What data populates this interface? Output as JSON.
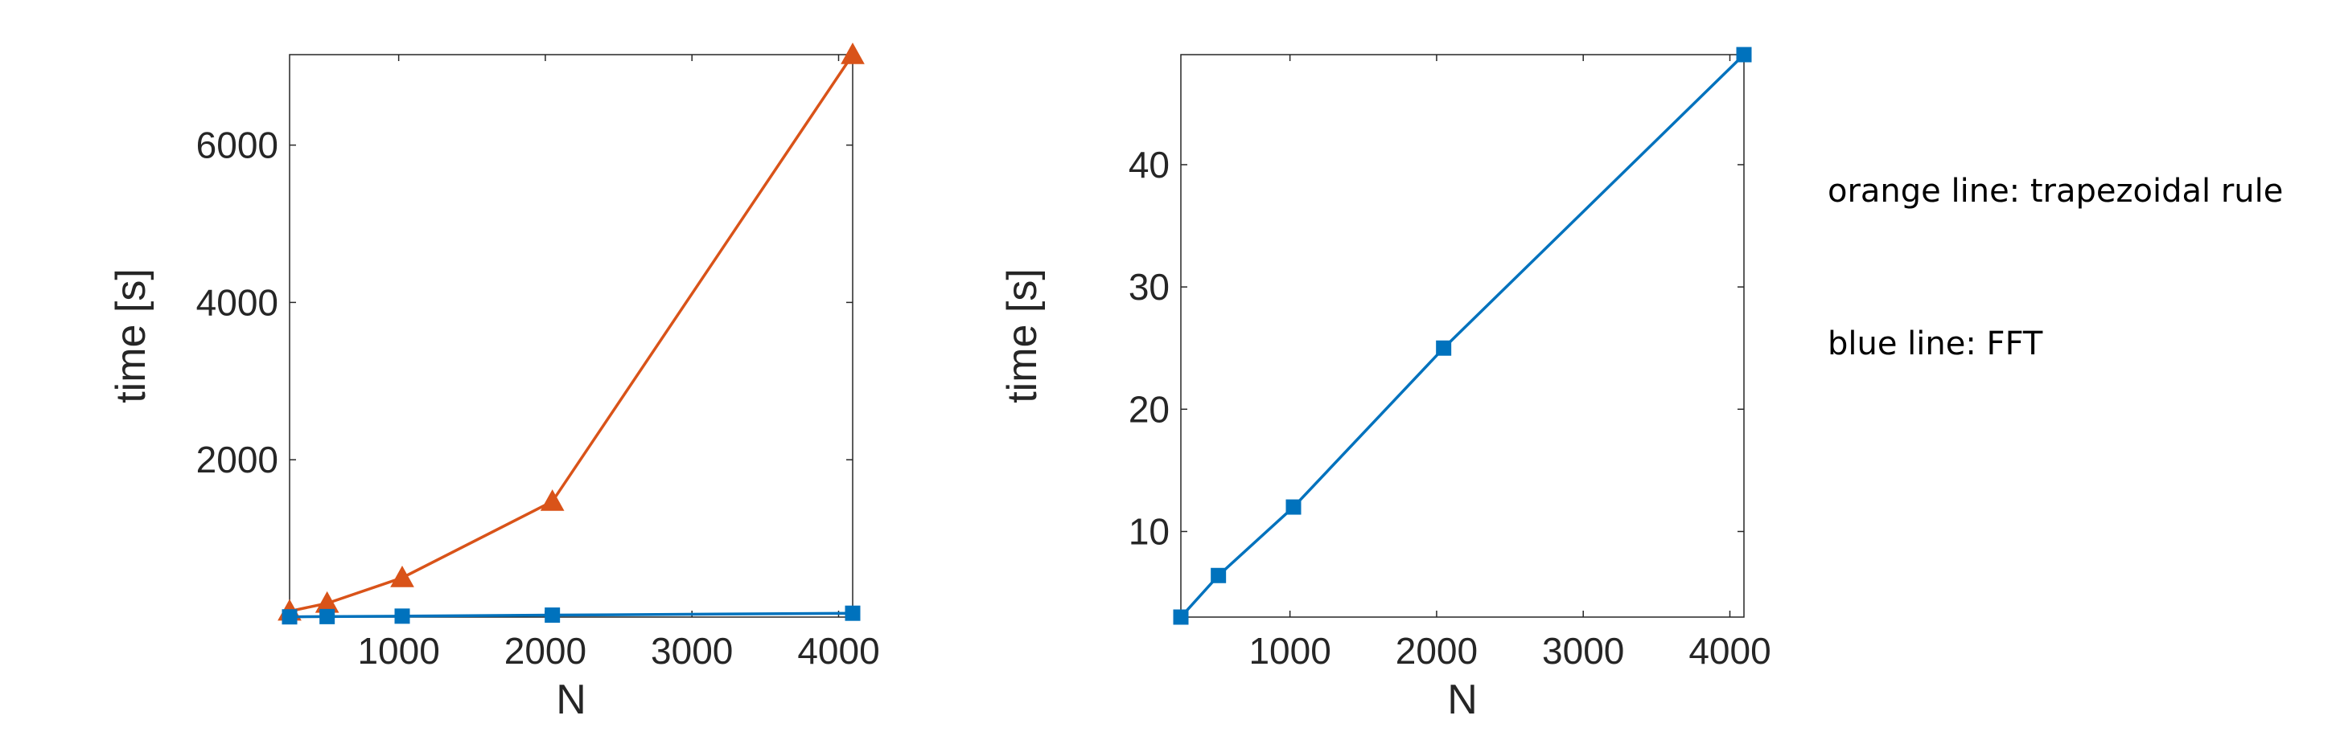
{
  "chart_data": [
    {
      "type": "line",
      "title": "",
      "xlabel": "N",
      "ylabel": "time [s]",
      "xlim": [
        256,
        4096
      ],
      "ylim": [
        0,
        7150
      ],
      "xticks": [
        1000,
        2000,
        3000,
        4000
      ],
      "yticks": [
        2000,
        4000,
        6000
      ],
      "grid": false,
      "series": [
        {
          "color": "#D95319",
          "marker": "triangle",
          "x": [
            256,
            512,
            1024,
            2048,
            4096
          ],
          "y": [
            75,
            175,
            500,
            1470,
            7150
          ]
        },
        {
          "color": "#0072BD",
          "marker": "square",
          "x": [
            256,
            512,
            1024,
            2048,
            4096
          ],
          "y": [
            3,
            6.4,
            12,
            25,
            49
          ]
        }
      ]
    },
    {
      "type": "line",
      "title": "",
      "xlabel": "N",
      "ylabel": "time [s]",
      "xlim": [
        256,
        4096
      ],
      "ylim": [
        3,
        49
      ],
      "xticks": [
        1000,
        2000,
        3000,
        4000
      ],
      "yticks": [
        10,
        20,
        30,
        40
      ],
      "grid": false,
      "series": [
        {
          "color": "#0072BD",
          "marker": "square",
          "x": [
            256,
            512,
            1024,
            2048,
            4096
          ],
          "y": [
            3,
            6.4,
            12,
            25,
            49
          ]
        }
      ]
    }
  ],
  "annotations": {
    "orange": "orange line: trapezoidal rule",
    "blue": "blue line: FFT"
  }
}
